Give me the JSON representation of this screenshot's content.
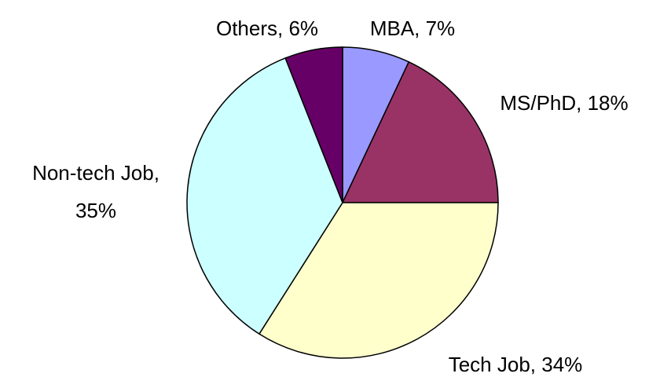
{
  "chart_data": {
    "type": "pie",
    "labels": [
      [
        "MBA, 7%"
      ],
      [
        "MS/PhD, 18%"
      ],
      [
        "Tech Job, 34%"
      ],
      [
        "Non-tech Job,",
        "35%"
      ],
      [
        "Others, 6%"
      ]
    ],
    "values": [
      7,
      18,
      34,
      35,
      6
    ],
    "colors": [
      "#9999ff",
      "#993366",
      "#ffffcc",
      "#ccffff",
      "#660066"
    ]
  }
}
